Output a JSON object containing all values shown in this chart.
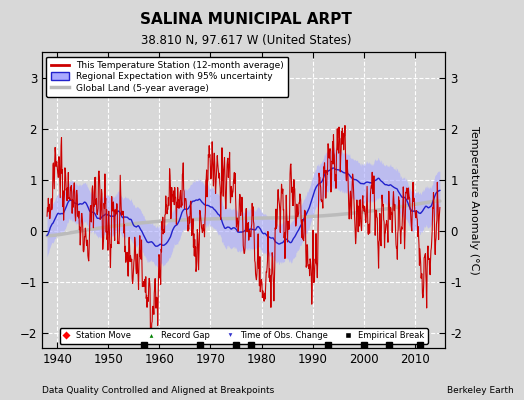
{
  "title": "SALINA MUNICIPAL ARPT",
  "subtitle": "38.810 N, 97.617 W (United States)",
  "xlabel_bottom": "Data Quality Controlled and Aligned at Breakpoints",
  "xlabel_right": "Berkeley Earth",
  "ylabel": "Temperature Anomaly (°C)",
  "xlim": [
    1937,
    2016
  ],
  "ylim": [
    -2.3,
    3.5
  ],
  "yticks": [
    -2,
    -1,
    0,
    1,
    2,
    3
  ],
  "xticks": [
    1940,
    1950,
    1960,
    1970,
    1980,
    1990,
    2000,
    2010
  ],
  "background_color": "#d8d8d8",
  "plot_bg_color": "#d8d8d8",
  "red_line_color": "#cc0000",
  "blue_fill_color": "#aaaaff",
  "blue_line_color": "#2222cc",
  "gray_line_color": "#bbbbbb",
  "seed": 12345,
  "start_year": 1938.0,
  "end_year": 2014.917,
  "n_months": 924,
  "empirical_break_years": [
    1957,
    1968,
    1975,
    1978,
    1993,
    2000,
    2005,
    2011
  ]
}
